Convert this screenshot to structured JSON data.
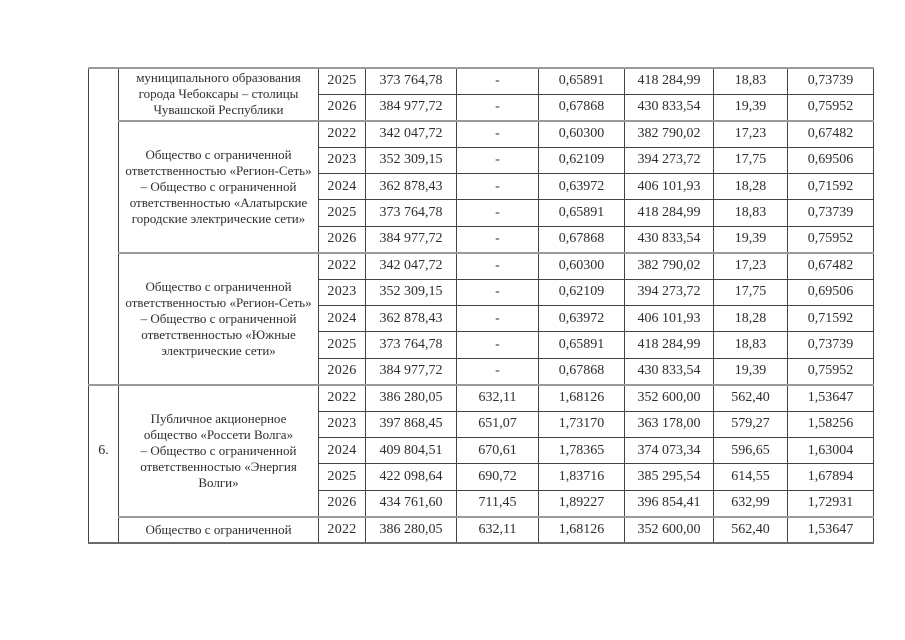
{
  "colors": {
    "text": "#2e2e2e",
    "grid-dark": "#454545",
    "grid-light": "#9a9a9a",
    "bottom": "#6a6a6a",
    "bg": "#ffffff"
  },
  "table": {
    "sections": [
      {
        "number": "",
        "blocks": [
          {
            "org_lines": [
              "муниципального образования",
              "города Чебоксары – столицы",
              "Чувашской Республики"
            ],
            "rows": [
              [
                "2025",
                "373 764,78",
                "-",
                "0,65891",
                "418 284,99",
                "18,83",
                "0,73739"
              ],
              [
                "2026",
                "384 977,72",
                "-",
                "0,67868",
                "430 833,54",
                "19,39",
                "0,75952"
              ]
            ]
          },
          {
            "org_lines": [
              "Общество с ограниченной",
              "ответственностью «Регион-Сеть»",
              "– Общество с ограниченной",
              "ответственностью «Алатырские",
              "городские электрические сети»"
            ],
            "rows": [
              [
                "2022",
                "342 047,72",
                "-",
                "0,60300",
                "382 790,02",
                "17,23",
                "0,67482"
              ],
              [
                "2023",
                "352 309,15",
                "-",
                "0,62109",
                "394 273,72",
                "17,75",
                "0,69506"
              ],
              [
                "2024",
                "362 878,43",
                "-",
                "0,63972",
                "406 101,93",
                "18,28",
                "0,71592"
              ],
              [
                "2025",
                "373 764,78",
                "-",
                "0,65891",
                "418 284,99",
                "18,83",
                "0,73739"
              ],
              [
                "2026",
                "384 977,72",
                "-",
                "0,67868",
                "430 833,54",
                "19,39",
                "0,75952"
              ]
            ]
          },
          {
            "org_lines": [
              "Общество с ограниченной",
              "ответственностью «Регион-Сеть»",
              "– Общество с ограниченной",
              "ответственностью «Южные",
              "электрические сети»"
            ],
            "rows": [
              [
                "2022",
                "342 047,72",
                "-",
                "0,60300",
                "382 790,02",
                "17,23",
                "0,67482"
              ],
              [
                "2023",
                "352 309,15",
                "-",
                "0,62109",
                "394 273,72",
                "17,75",
                "0,69506"
              ],
              [
                "2024",
                "362 878,43",
                "-",
                "0,63972",
                "406 101,93",
                "18,28",
                "0,71592"
              ],
              [
                "2025",
                "373 764,78",
                "-",
                "0,65891",
                "418 284,99",
                "18,83",
                "0,73739"
              ],
              [
                "2026",
                "384 977,72",
                "-",
                "0,67868",
                "430 833,54",
                "19,39",
                "0,75952"
              ]
            ]
          }
        ]
      },
      {
        "number": "6.",
        "blocks": [
          {
            "org_lines": [
              "Публичное акционерное",
              "общество «Россети Волга»",
              "– Общество с ограниченной",
              "ответственностью «Энергия",
              "Волги»"
            ],
            "rows": [
              [
                "2022",
                "386 280,05",
                "632,11",
                "1,68126",
                "352 600,00",
                "562,40",
                "1,53647"
              ],
              [
                "2023",
                "397 868,45",
                "651,07",
                "1,73170",
                "363 178,00",
                "579,27",
                "1,58256"
              ],
              [
                "2024",
                "409 804,51",
                "670,61",
                "1,78365",
                "374 073,34",
                "596,65",
                "1,63004"
              ],
              [
                "2025",
                "422 098,64",
                "690,72",
                "1,83716",
                "385 295,54",
                "614,55",
                "1,67894"
              ],
              [
                "2026",
                "434 761,60",
                "711,45",
                "1,89227",
                "396 854,41",
                "632,99",
                "1,72931"
              ]
            ]
          },
          {
            "org_lines": [
              "Общество с ограниченной"
            ],
            "rows": [
              [
                "2022",
                "386 280,05",
                "632,11",
                "1,68126",
                "352 600,00",
                "562,40",
                "1,53647"
              ]
            ]
          }
        ]
      }
    ]
  }
}
